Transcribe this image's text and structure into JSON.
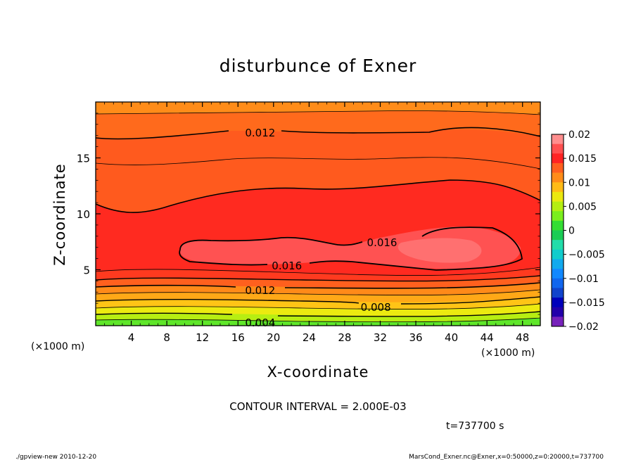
{
  "chart_data": {
    "type": "contour",
    "title": "disturbunce of Exner",
    "xlabel": "X-coordinate",
    "ylabel": "Z-coordinate",
    "x_unit": "(×1000 m)",
    "y_unit": "(×1000 m)",
    "xlim": [
      0,
      50
    ],
    "ylim": [
      0,
      20
    ],
    "x_ticks": [
      4,
      8,
      12,
      16,
      20,
      24,
      28,
      32,
      36,
      40,
      44,
      48
    ],
    "y_ticks": [
      5,
      10,
      15
    ],
    "contour_labels": [
      {
        "text": "0.012",
        "x": 18.5,
        "z": 17.3
      },
      {
        "text": "0.016",
        "x": 32.2,
        "z": 7.5
      },
      {
        "text": "0.016",
        "x": 21.5,
        "z": 5.4
      },
      {
        "text": "0.012",
        "x": 18.5,
        "z": 3.2
      },
      {
        "text": "0.008",
        "x": 31.5,
        "z": 1.7
      },
      {
        "text": "0.004",
        "x": 18.5,
        "z": 0.3
      }
    ],
    "colorbar": {
      "labels": [
        "0.02",
        "0.015",
        "0.01",
        "0.005",
        "0",
        "−0.005",
        "−0.01",
        "−0.015",
        "−0.02"
      ],
      "colors": [
        "#ff8e8e",
        "#ff5050",
        "#ff2323",
        "#ff5f1f",
        "#ff8c19",
        "#ffbb16",
        "#ebe80f",
        "#b4ee12",
        "#7aee1e",
        "#33dd33",
        "#1acc55",
        "#22ddaa",
        "#11cccc",
        "#11aaee",
        "#1188ff",
        "#1166ee",
        "#1144cc",
        "#0000bb",
        "#2200aa",
        "#7722bb"
      ]
    }
  },
  "contour_interval": "CONTOUR INTERVAL = 2.000E-03",
  "time_label": "t=737700 s",
  "footer_left": "./gpview-new  2010-12-20",
  "footer_right": "MarsCond_Exner.nc@Exner,x=0:50000,z=0:20000,t=737700"
}
